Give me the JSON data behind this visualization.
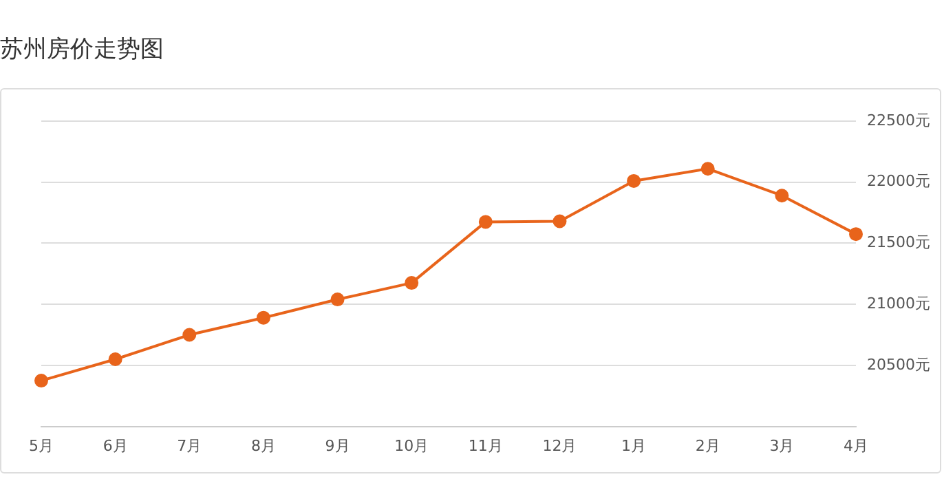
{
  "chart_data": {
    "type": "line",
    "title": "苏州房价走势图",
    "categories": [
      "5月",
      "6月",
      "7月",
      "8月",
      "9月",
      "10月",
      "11月",
      "12月",
      "1月",
      "2月",
      "3月",
      "4月"
    ],
    "series": [
      {
        "color": "#e8641b",
        "values": [
          20375,
          20550,
          20750,
          20890,
          21040,
          21175,
          21675,
          21680,
          22010,
          22110,
          21890,
          21575
        ]
      }
    ],
    "ylim": [
      20000,
      22500
    ],
    "yticks": [
      {
        "value": 20000,
        "label": null
      },
      {
        "value": 20500,
        "label": "20500元"
      },
      {
        "value": 21000,
        "label": "21000元"
      },
      {
        "value": 21500,
        "label": "21500元"
      },
      {
        "value": 22000,
        "label": "22000元"
      },
      {
        "value": 22500,
        "label": "22500元"
      }
    ],
    "grid": "y",
    "legend": false,
    "marker": "circle",
    "line_style": "solid"
  }
}
